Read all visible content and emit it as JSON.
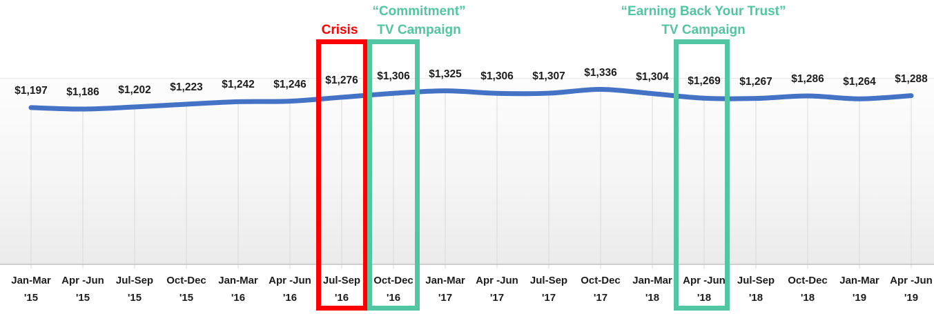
{
  "chart_data": {
    "type": "line",
    "categories": [
      {
        "quarter": "Jan-Mar",
        "year": "'15"
      },
      {
        "quarter": "Apr -Jun",
        "year": "'15"
      },
      {
        "quarter": "Jul-Sep",
        "year": "'15"
      },
      {
        "quarter": "Oct-Dec",
        "year": "'15"
      },
      {
        "quarter": "Jan-Mar",
        "year": "'16"
      },
      {
        "quarter": "Apr -Jun",
        "year": "'16"
      },
      {
        "quarter": "Jul-Sep",
        "year": "'16"
      },
      {
        "quarter": "Oct-Dec",
        "year": "'16"
      },
      {
        "quarter": "Jan-Mar",
        "year": "'17"
      },
      {
        "quarter": "Apr -Jun",
        "year": "'17"
      },
      {
        "quarter": "Jul-Sep",
        "year": "'17"
      },
      {
        "quarter": "Oct-Dec",
        "year": "'17"
      },
      {
        "quarter": "Jan-Mar",
        "year": "'18"
      },
      {
        "quarter": "Apr -Jun",
        "year": "'18"
      },
      {
        "quarter": "Jul-Sep",
        "year": "'18"
      },
      {
        "quarter": "Oct-Dec",
        "year": "'18"
      },
      {
        "quarter": "Jan-Mar",
        "year": "'19"
      },
      {
        "quarter": "Apr -Jun",
        "year": "'19"
      }
    ],
    "values": [
      1197,
      1186,
      1202,
      1223,
      1242,
      1246,
      1276,
      1306,
      1325,
      1306,
      1307,
      1336,
      1304,
      1269,
      1267,
      1286,
      1264,
      1288
    ],
    "value_prefix": "$",
    "ylim": [
      0,
      1400
    ],
    "grid": "drop-lines-only",
    "y_axis_visible": false,
    "annotations": {
      "crisis": {
        "label": "Crisis",
        "color": "#FF0000",
        "target_quarter": "Jul-Sep '16"
      },
      "commitment": {
        "line1": "“Commitment”",
        "line2": "TV Campaign",
        "color": "#52C5A2",
        "target_quarter": "Oct-Dec '16"
      },
      "earning": {
        "line1": "“Earning Back Your Trust”",
        "line2": "TV Campaign",
        "color": "#52C5A2",
        "target_quarter": "Apr -Jun '18"
      }
    },
    "highlights": [
      {
        "name": "crisis-box",
        "category_index": 6,
        "color": "#FF0000"
      },
      {
        "name": "commitment-campaign-box",
        "category_index": 7,
        "color": "#52C5A2"
      },
      {
        "name": "earning-back-trust-campaign-box",
        "category_index": 13,
        "color": "#52C5A2"
      }
    ],
    "colors": {
      "line": "#4472C4",
      "drop_line": "#D9D9D9",
      "axis_line": "#C4C4C4",
      "label_text": "#1C1C1C"
    }
  }
}
